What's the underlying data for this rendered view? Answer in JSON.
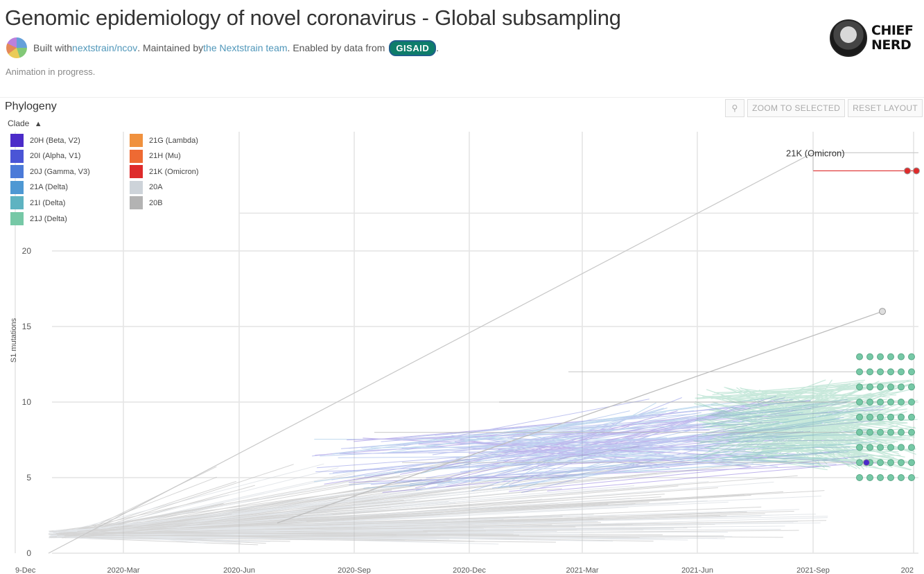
{
  "header": {
    "title": "Genomic epidemiology of novel coronavirus - Global subsampling",
    "byline_built": "Built with ",
    "byline_link1": "nextstrain/ncov",
    "byline_maintained": ". Maintained by ",
    "byline_link2": "the Nextstrain team",
    "byline_enabled": ". Enabled by data from ",
    "gisaid": "GISAID",
    "byline_end": ".",
    "animation_status": "Animation in progress.",
    "brand_line1": "CHIEF",
    "brand_line2": "NERD"
  },
  "panel": {
    "title": "Phylogeny",
    "legend_toggle": "Clade",
    "toolbar": {
      "zoom_to_selected": "ZOOM TO SELECTED",
      "reset_layout": "RESET LAYOUT"
    }
  },
  "colors": {
    "20H (Beta, V2)": "#4b2bc9",
    "20I (Alpha, V1)": "#4a55d6",
    "20J (Gamma, V3)": "#4b7ad8",
    "21A (Delta)": "#4e98d3",
    "21I (Delta)": "#5eb3c1",
    "21J (Delta)": "#76c8a6",
    "21G (Lambda)": "#f0913e",
    "21H (Mu)": "#ee6a33",
    "21K (Omicron)": "#de2b2b",
    "20A": "#cdd3d9",
    "20B": "#b3b3b3"
  },
  "chart_data": {
    "type": "scatter",
    "ylabel": "S1 mutations",
    "xlabel": "",
    "ylim": [
      0,
      23
    ],
    "y_ticks": [
      0,
      5,
      10,
      15,
      20
    ],
    "x_ticks": [
      "9-Dec",
      "2020-Mar",
      "2020-Jun",
      "2020-Sep",
      "2020-Dec",
      "2021-Mar",
      "2021-Jun",
      "2021-Sep",
      "202"
    ],
    "grid": true,
    "legend_position": "top-left",
    "legend": [
      {
        "name": "20H (Beta, V2)",
        "color": "#4b2bc9"
      },
      {
        "name": "20I (Alpha, V1)",
        "color": "#4a55d6"
      },
      {
        "name": "20J (Gamma, V3)",
        "color": "#4b7ad8"
      },
      {
        "name": "21A (Delta)",
        "color": "#4e98d3"
      },
      {
        "name": "21I (Delta)",
        "color": "#5eb3c1"
      },
      {
        "name": "21J (Delta)",
        "color": "#76c8a6"
      },
      {
        "name": "21G (Lambda)",
        "color": "#f0913e"
      },
      {
        "name": "21H (Mu)",
        "color": "#ee6a33"
      },
      {
        "name": "21K (Omicron)",
        "color": "#de2b2b"
      },
      {
        "name": "20A",
        "color": "#cdd3d9"
      },
      {
        "name": "20B",
        "color": "#b3b3b3"
      }
    ],
    "annotation": "21K (Omicron)",
    "tips": [
      {
        "clade": "21K (Omicron)",
        "x": "2021-Nov",
        "y": 26.5
      },
      {
        "clade": "21K (Omicron)",
        "x": "2021-Nov",
        "y": 26.5
      },
      {
        "clade": "20B",
        "x": "2021-Oct",
        "y": 16
      },
      {
        "clade": "21J (Delta)",
        "x": "2021-Oct",
        "y": 13
      },
      {
        "clade": "21J (Delta)",
        "x": "2021-Oct",
        "y": 12
      },
      {
        "clade": "21J (Delta)",
        "x": "2021-Oct",
        "y": 11
      },
      {
        "clade": "21J (Delta)",
        "x": "2021-Oct",
        "y": 10
      },
      {
        "clade": "21J (Delta)",
        "x": "2021-Oct",
        "y": 9
      },
      {
        "clade": "21J (Delta)",
        "x": "2021-Oct",
        "y": 8
      },
      {
        "clade": "21J (Delta)",
        "x": "2021-Oct",
        "y": 7
      },
      {
        "clade": "21J (Delta)",
        "x": "2021-Oct",
        "y": 6
      },
      {
        "clade": "21J (Delta)",
        "x": "2021-Oct",
        "y": 5
      },
      {
        "clade": "20H (Beta, V2)",
        "x": "2021-Oct",
        "y": 6
      }
    ]
  }
}
